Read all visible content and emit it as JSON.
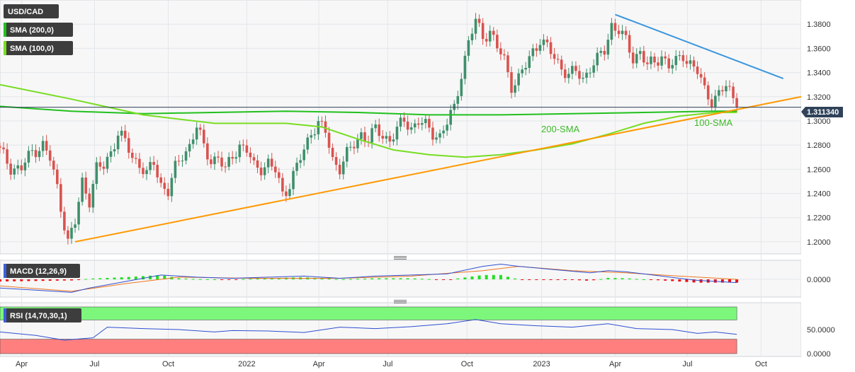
{
  "chart_data": [
    {
      "type": "candlestick",
      "title": "USD/CAD",
      "legend": [
        {
          "label": "SMA (200,0)",
          "color": "#22c01e"
        },
        {
          "label": "SMA (100,0)",
          "color": "#77dd22"
        }
      ],
      "last_price_label": "1.311340",
      "last_price": 1.31134,
      "ylim": [
        1.19,
        1.4
      ],
      "y_ticks": [
        "1.2000",
        "1.2200",
        "1.2400",
        "1.2600",
        "1.2800",
        "1.3000",
        "1.3200",
        "1.3400",
        "1.3600",
        "1.3800"
      ],
      "x_ticks": [
        "Apr",
        "Jul",
        "Oct",
        "2022",
        "Apr",
        "Jul",
        "Oct",
        "2023",
        "Apr",
        "Jul",
        "Oct"
      ],
      "annotations": [
        {
          "text": "200-SMA",
          "color": "#3cba28"
        },
        {
          "text": "100-SMA",
          "color": "#3cba28"
        }
      ],
      "close_path": [
        [
          0,
          1.275
        ],
        [
          3,
          1.262
        ],
        [
          6,
          1.26
        ],
        [
          9,
          1.275
        ],
        [
          12,
          1.28
        ],
        [
          14,
          1.268
        ],
        [
          16,
          1.245
        ],
        [
          19,
          1.2
        ],
        [
          21,
          1.215
        ],
        [
          23,
          1.25
        ],
        [
          25,
          1.235
        ],
        [
          27,
          1.26
        ],
        [
          29,
          1.262
        ],
        [
          31,
          1.275
        ],
        [
          33,
          1.29
        ],
        [
          35,
          1.282
        ],
        [
          37,
          1.27
        ],
        [
          39,
          1.265
        ],
        [
          41,
          1.255
        ],
        [
          43,
          1.265
        ],
        [
          45,
          1.248
        ],
        [
          47,
          1.242
        ],
        [
          49,
          1.26
        ],
        [
          51,
          1.272
        ],
        [
          53,
          1.28
        ],
        [
          55,
          1.295
        ],
        [
          57,
          1.278
        ],
        [
          59,
          1.268
        ],
        [
          61,
          1.27
        ],
        [
          63,
          1.258
        ],
        [
          65,
          1.272
        ],
        [
          67,
          1.28
        ],
        [
          69,
          1.275
        ],
        [
          71,
          1.262
        ],
        [
          73,
          1.262
        ],
        [
          75,
          1.265
        ],
        [
          77,
          1.258
        ],
        [
          79,
          1.24
        ],
        [
          81,
          1.248
        ],
        [
          83,
          1.262
        ],
        [
          85,
          1.275
        ],
        [
          87,
          1.292
        ],
        [
          89,
          1.298
        ],
        [
          91,
          1.29
        ],
        [
          93,
          1.268
        ],
        [
          95,
          1.262
        ],
        [
          97,
          1.272
        ],
        [
          99,
          1.28
        ],
        [
          101,
          1.29
        ],
        [
          103,
          1.285
        ],
        [
          105,
          1.292
        ],
        [
          107,
          1.288
        ],
        [
          109,
          1.285
        ],
        [
          111,
          1.292
        ],
        [
          113,
          1.3
        ],
        [
          115,
          1.295
        ],
        [
          117,
          1.3
        ],
        [
          119,
          1.295
        ],
        [
          121,
          1.29
        ],
        [
          123,
          1.288
        ],
        [
          125,
          1.298
        ],
        [
          127,
          1.31
        ],
        [
          129,
          1.34
        ],
        [
          131,
          1.365
        ],
        [
          133,
          1.382
        ],
        [
          135,
          1.37
        ],
        [
          137,
          1.375
        ],
        [
          139,
          1.36
        ],
        [
          141,
          1.35
        ],
        [
          143,
          1.33
        ],
        [
          145,
          1.335
        ],
        [
          147,
          1.345
        ],
        [
          149,
          1.358
        ],
        [
          151,
          1.368
        ],
        [
          153,
          1.36
        ],
        [
          155,
          1.352
        ],
        [
          157,
          1.345
        ],
        [
          159,
          1.338
        ],
        [
          161,
          1.34
        ],
        [
          163,
          1.335
        ],
        [
          165,
          1.345
        ],
        [
          167,
          1.35
        ],
        [
          169,
          1.358
        ],
        [
          171,
          1.38
        ],
        [
          173,
          1.375
        ],
        [
          175,
          1.365
        ],
        [
          177,
          1.352
        ],
        [
          179,
          1.358
        ],
        [
          181,
          1.345
        ],
        [
          183,
          1.348
        ],
        [
          185,
          1.355
        ],
        [
          187,
          1.345
        ],
        [
          189,
          1.348
        ],
        [
          191,
          1.355
        ],
        [
          193,
          1.348
        ],
        [
          195,
          1.34
        ],
        [
          197,
          1.325
        ],
        [
          199,
          1.318
        ],
        [
          201,
          1.322
        ],
        [
          203,
          1.328
        ],
        [
          205,
          1.32
        ],
        [
          206,
          1.311
        ]
      ],
      "trendlines": [
        {
          "name": "resistance",
          "color": "#3a96dd",
          "from": [
            172,
            1.388
          ],
          "to": [
            219,
            1.335
          ]
        },
        {
          "name": "support",
          "color": "#ff9900",
          "from": [
            21,
            1.2
          ],
          "to": [
            224,
            1.32
          ]
        }
      ],
      "sma_200": [
        [
          0,
          1.312
        ],
        [
          20,
          1.308
        ],
        [
          40,
          1.306
        ],
        [
          60,
          1.307
        ],
        [
          80,
          1.308
        ],
        [
          100,
          1.307
        ],
        [
          120,
          1.305
        ],
        [
          140,
          1.305
        ],
        [
          160,
          1.306
        ],
        [
          180,
          1.307
        ],
        [
          200,
          1.308
        ],
        [
          206,
          1.308
        ]
      ],
      "sma_100": [
        [
          0,
          1.33
        ],
        [
          20,
          1.318
        ],
        [
          40,
          1.305
        ],
        [
          60,
          1.298
        ],
        [
          80,
          1.298
        ],
        [
          90,
          1.295
        ],
        [
          100,
          1.285
        ],
        [
          110,
          1.276
        ],
        [
          120,
          1.272
        ],
        [
          130,
          1.27
        ],
        [
          140,
          1.272
        ],
        [
          150,
          1.276
        ],
        [
          160,
          1.281
        ],
        [
          170,
          1.289
        ],
        [
          180,
          1.298
        ],
        [
          190,
          1.304
        ],
        [
          200,
          1.307
        ],
        [
          206,
          1.307
        ]
      ]
    },
    {
      "type": "macd",
      "title": "MACD (12,26,9)",
      "ylim": [
        -0.015,
        0.015
      ],
      "y_ticks": [
        "0.0000"
      ],
      "macd": [
        [
          0,
          -0.008
        ],
        [
          10,
          -0.01
        ],
        [
          20,
          -0.012
        ],
        [
          25,
          -0.008
        ],
        [
          35,
          -0.002
        ],
        [
          45,
          0.004
        ],
        [
          55,
          0.002
        ],
        [
          65,
          0.001
        ],
        [
          75,
          0.002
        ],
        [
          85,
          0.003
        ],
        [
          95,
          0.001
        ],
        [
          105,
          0.003
        ],
        [
          115,
          0.004
        ],
        [
          125,
          0.005
        ],
        [
          135,
          0.012
        ],
        [
          140,
          0.014
        ],
        [
          145,
          0.012
        ],
        [
          155,
          0.009
        ],
        [
          165,
          0.006
        ],
        [
          170,
          0.008
        ],
        [
          175,
          0.007
        ],
        [
          180,
          0.005
        ],
        [
          190,
          0.001
        ],
        [
          195,
          -0.001
        ],
        [
          206,
          -0.003
        ]
      ],
      "signal": [
        [
          0,
          -0.006
        ],
        [
          20,
          -0.011
        ],
        [
          35,
          -0.004
        ],
        [
          50,
          0.002
        ],
        [
          70,
          0.001
        ],
        [
          95,
          0.001
        ],
        [
          115,
          0.003
        ],
        [
          135,
          0.008
        ],
        [
          145,
          0.012
        ],
        [
          160,
          0.008
        ],
        [
          175,
          0.006
        ],
        [
          190,
          0.003
        ],
        [
          206,
          0.0
        ]
      ]
    },
    {
      "type": "rsi",
      "title": "RSI (14,70,30,1)",
      "ylim": [
        0,
        100
      ],
      "y_ticks": [
        "50.0000",
        "0.0000"
      ],
      "bands": {
        "upper": 70,
        "lower": 30,
        "upper_color": "#7cf77c",
        "lower_color": "#ff7f7f"
      },
      "rsi": [
        [
          0,
          45
        ],
        [
          10,
          38
        ],
        [
          18,
          28
        ],
        [
          26,
          33
        ],
        [
          30,
          55
        ],
        [
          40,
          52
        ],
        [
          50,
          50
        ],
        [
          60,
          45
        ],
        [
          65,
          48
        ],
        [
          75,
          47
        ],
        [
          85,
          44
        ],
        [
          95,
          55
        ],
        [
          105,
          52
        ],
        [
          115,
          56
        ],
        [
          125,
          62
        ],
        [
          133,
          71
        ],
        [
          140,
          62
        ],
        [
          150,
          58
        ],
        [
          160,
          55
        ],
        [
          170,
          62
        ],
        [
          178,
          52
        ],
        [
          188,
          50
        ],
        [
          195,
          42
        ],
        [
          200,
          45
        ],
        [
          206,
          40
        ]
      ]
    }
  ]
}
